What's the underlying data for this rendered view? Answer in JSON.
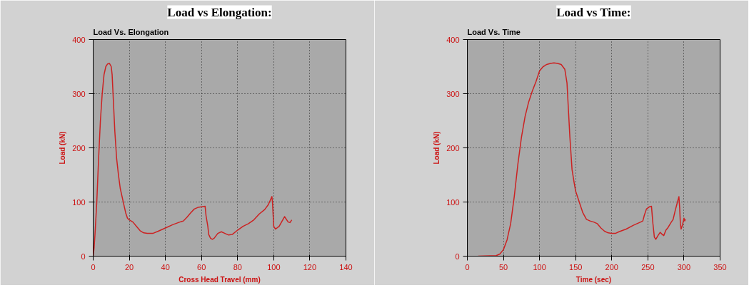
{
  "chart_data": [
    {
      "type": "line",
      "title": "Load vs Elongation:",
      "subtitle": "Load Vs. Elongation",
      "xlabel": "Cross Head Travel (mm)",
      "ylabel": "Load (kN)",
      "x": [
        0,
        0.5,
        1,
        2,
        3,
        4,
        5,
        6,
        7,
        8,
        9,
        10,
        10.5,
        11,
        12,
        13,
        14,
        15,
        16,
        17,
        18,
        19,
        20,
        22,
        24,
        26,
        28,
        30,
        33,
        36,
        40,
        44,
        48,
        50,
        52,
        54,
        56,
        58,
        60,
        62,
        62.5,
        63.5,
        64,
        65,
        66,
        67,
        69,
        71,
        73,
        75,
        77,
        80,
        83,
        86,
        89,
        92,
        95,
        97,
        99,
        99.3,
        100,
        101,
        103,
        106,
        108,
        109,
        110
      ],
      "series": [
        {
          "color": "#cc2222",
          "values": [
            0,
            15,
            40,
            100,
            180,
            250,
            300,
            335,
            350,
            355,
            356,
            350,
            335,
            300,
            230,
            180,
            150,
            125,
            110,
            95,
            80,
            70,
            67,
            63,
            55,
            47,
            43,
            42,
            42,
            46,
            52,
            58,
            63,
            65,
            72,
            80,
            87,
            90,
            91,
            92,
            75,
            55,
            40,
            33,
            31,
            33,
            42,
            45,
            42,
            39,
            40,
            48,
            55,
            60,
            67,
            78,
            86,
            95,
            110,
            100,
            55,
            50,
            55,
            73,
            63,
            62,
            67
          ]
        }
      ],
      "xlim": [
        0,
        140
      ],
      "ylim": [
        0,
        400
      ],
      "xticks": [
        0,
        20,
        40,
        60,
        80,
        100,
        120,
        140
      ],
      "yticks": [
        0,
        100,
        200,
        300,
        400
      ],
      "grid": true,
      "line_style": "solid"
    },
    {
      "type": "line",
      "title": "Load vs Time:",
      "subtitle": "Load Vs. Time",
      "xlabel": "Time (sec)",
      "ylabel": "Load (kN)",
      "x": [
        15,
        40,
        45,
        50,
        55,
        60,
        65,
        70,
        75,
        80,
        85,
        90,
        95,
        100,
        105,
        110,
        115,
        120,
        125,
        130,
        135,
        138,
        140,
        142,
        145,
        148,
        150,
        155,
        160,
        165,
        170,
        175,
        180,
        185,
        190,
        195,
        200,
        205,
        210,
        220,
        230,
        240,
        243,
        245,
        248,
        252,
        255,
        257,
        259,
        261,
        264,
        267,
        270,
        272,
        275,
        278,
        282,
        285,
        288,
        291,
        293,
        294,
        295,
        296,
        298,
        300,
        301,
        302
      ],
      "series": [
        {
          "color": "#cc2222",
          "values": [
            0,
            1,
            4,
            12,
            30,
            60,
            110,
            170,
            220,
            258,
            285,
            305,
            322,
            342,
            350,
            354,
            356,
            357,
            356,
            354,
            345,
            320,
            270,
            220,
            160,
            135,
            120,
            100,
            80,
            68,
            65,
            63,
            60,
            52,
            46,
            43,
            42,
            42,
            45,
            50,
            57,
            63,
            65,
            75,
            87,
            91,
            92,
            60,
            35,
            31,
            38,
            44,
            40,
            38,
            48,
            53,
            62,
            68,
            85,
            100,
            110,
            90,
            60,
            50,
            58,
            70,
            65,
            68
          ]
        }
      ],
      "xlim": [
        0,
        350
      ],
      "ylim": [
        0,
        400
      ],
      "xticks": [
        0,
        50,
        100,
        150,
        200,
        250,
        300,
        350
      ],
      "yticks": [
        0,
        100,
        200,
        300,
        400
      ],
      "grid": true,
      "line_style": "solid"
    }
  ]
}
